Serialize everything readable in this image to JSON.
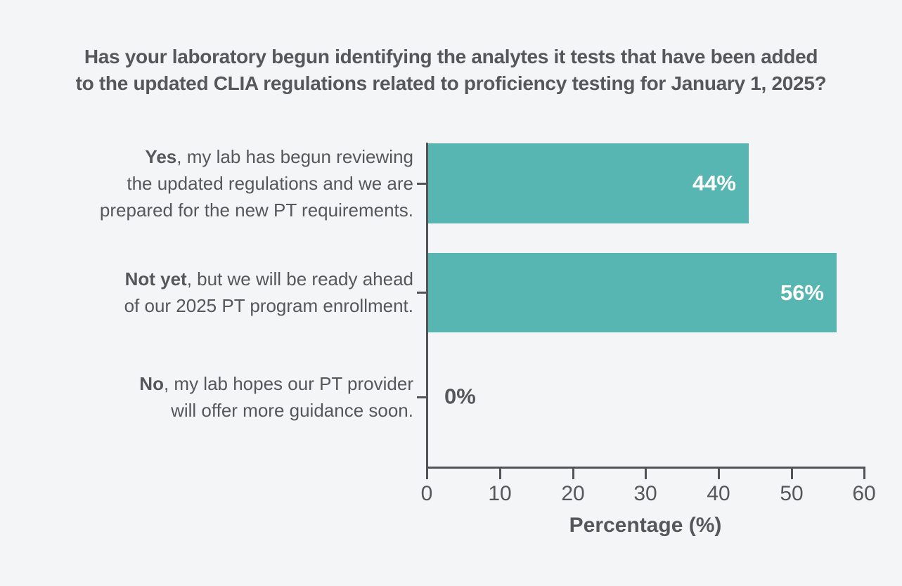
{
  "title": {
    "line1": "Has your laboratory begun identifying the analytes it tests that have been added",
    "line2": "to the updated CLIA regulations related to proficiency testing for January 1, 2025?"
  },
  "colors": {
    "bar": "#58b6b2",
    "axis": "#515358",
    "text": "#55575a",
    "value_label_inside": "#ffffff",
    "background": "#f4f5f6"
  },
  "x_axis": {
    "label": "Percentage (%)",
    "ticks": [
      "0",
      "10",
      "20",
      "30",
      "40",
      "50",
      "60"
    ]
  },
  "chart_data": {
    "type": "bar",
    "orientation": "horizontal",
    "title": "Has your laboratory begun identifying the analytes it tests that have been added to the updated CLIA regulations related to proficiency testing for January 1, 2025?",
    "xlabel": "Percentage (%)",
    "ylabel": "",
    "xlim": [
      0,
      60
    ],
    "grid": false,
    "legend": false,
    "categories": [
      "Yes, my lab has begun reviewing the updated regulations and we are prepared for the new PT requirements.",
      "Not yet, but we will be ready ahead of our 2025 PT program enrollment.",
      "No, my lab hopes our PT provider will offer more guidance soon."
    ],
    "values": [
      44,
      56,
      0
    ],
    "rows": [
      {
        "bold": "Yes",
        "lines": [
          ", my lab has begun reviewing",
          "the updated regulations and we are",
          "prepared for the new PT requirements."
        ],
        "value": 44,
        "display": "44%"
      },
      {
        "bold": "Not yet",
        "lines": [
          ", but we will be ready ahead",
          "of our 2025 PT program enrollment."
        ],
        "value": 56,
        "display": "56%"
      },
      {
        "bold": "No",
        "lines": [
          ", my lab hopes our PT provider",
          "will offer more guidance soon."
        ],
        "value": 0,
        "display": "0%"
      }
    ]
  }
}
